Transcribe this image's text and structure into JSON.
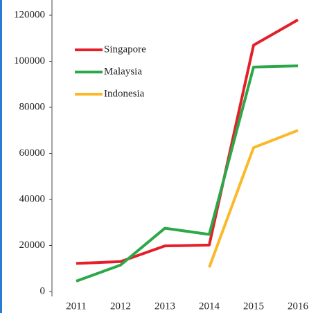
{
  "chart_data": {
    "type": "line",
    "categories": [
      "2011",
      "2012",
      "2013",
      "2014",
      "2015",
      "2016"
    ],
    "series": [
      {
        "name": "Singapore",
        "color": "#e3202a",
        "values": [
          12200,
          13000,
          19800,
          20200,
          107000,
          118000
        ]
      },
      {
        "name": "Malaysia",
        "color": "#2ca84a",
        "values": [
          4500,
          11500,
          27500,
          24800,
          97500,
          98000
        ]
      },
      {
        "name": "Indonesia",
        "color": "#fbb829",
        "values": [
          null,
          null,
          null,
          10500,
          62500,
          70000
        ]
      }
    ],
    "ylim": [
      0,
      120000
    ],
    "yticks": [
      0,
      20000,
      40000,
      60000,
      80000,
      100000,
      120000
    ],
    "legend": "upper left"
  }
}
